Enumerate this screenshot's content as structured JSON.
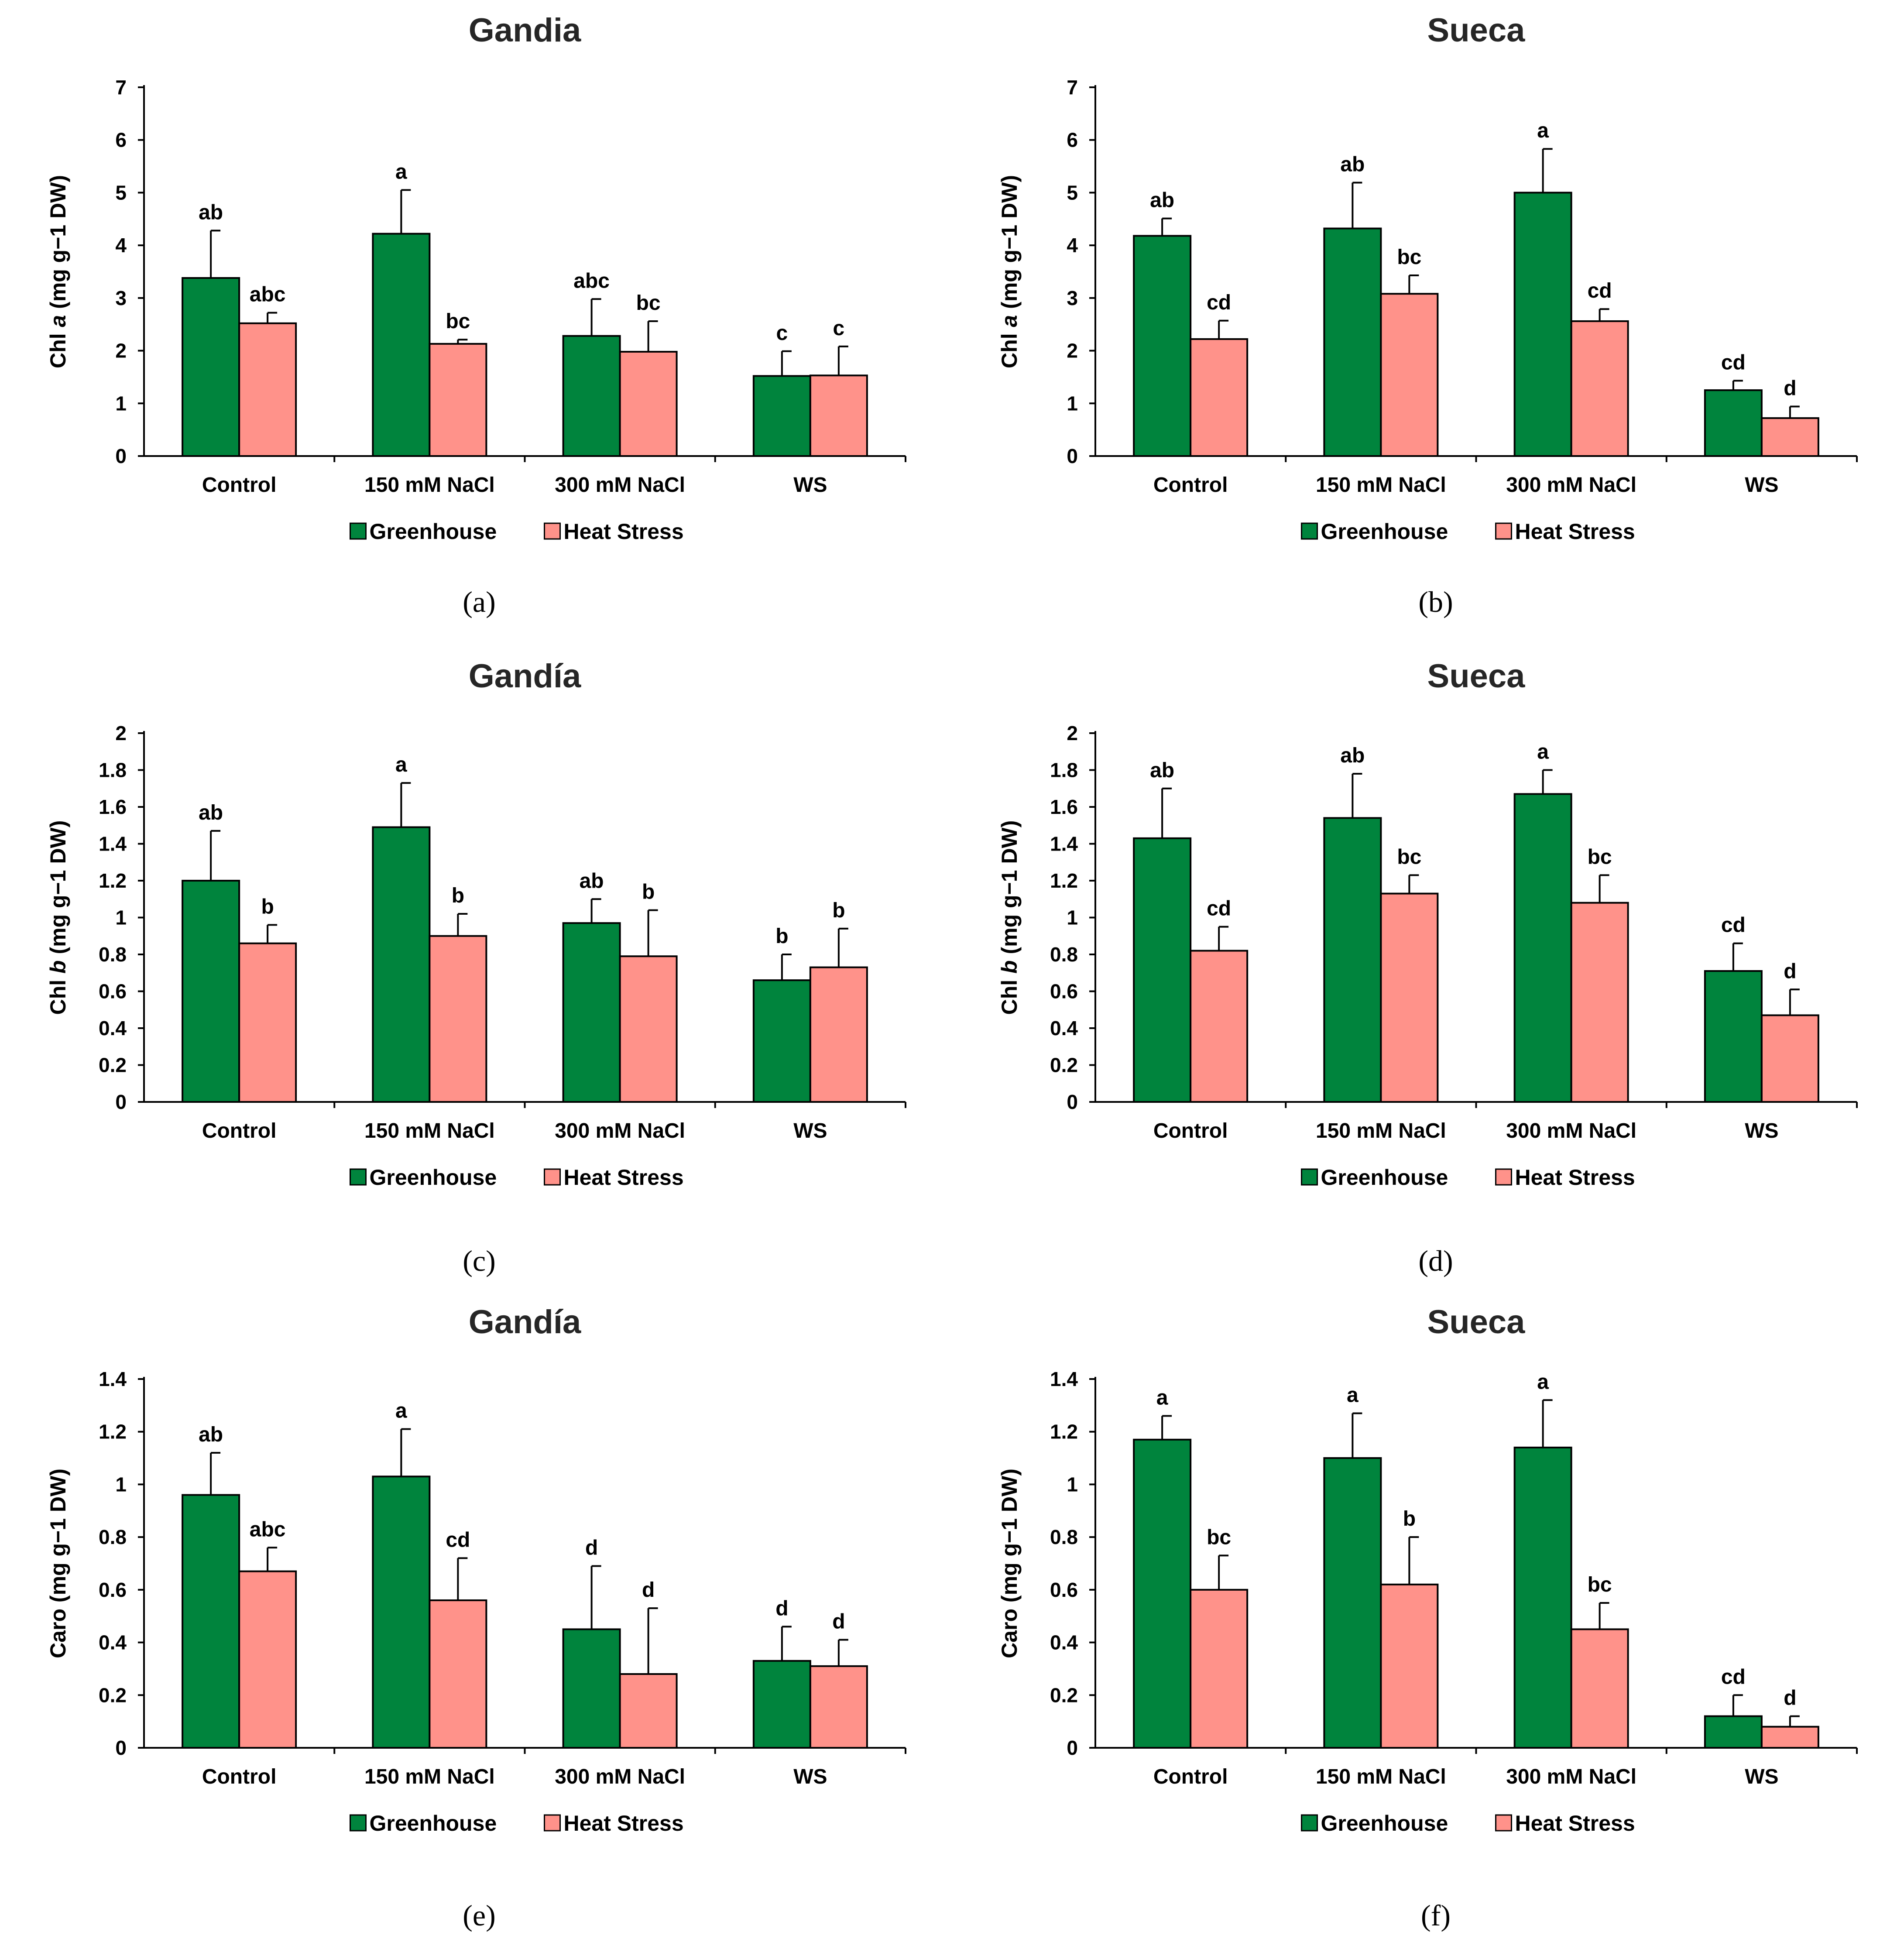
{
  "colors": {
    "greenhouse": "#00843d",
    "heat_stress": "#ff928a",
    "axis": "#000000",
    "error_bar": "#000000"
  },
  "chart_data": [
    {
      "panel": "a",
      "type": "bar",
      "title": "Gandia",
      "ylabel_prefix": "Chl ",
      "ylabel_italic": "a",
      "ylabel_suffix": " (mg g−1 DW)",
      "ylim": [
        0,
        7
      ],
      "yticks": [
        "0",
        "1",
        "2",
        "3",
        "4",
        "5",
        "6",
        "7"
      ],
      "ytick_values": [
        0,
        1,
        2,
        3,
        4,
        5,
        6,
        7
      ],
      "categories": [
        "Control",
        "150 mM NaCl",
        "300 mM NaCl",
        "WS"
      ],
      "series": [
        {
          "name": "Greenhouse",
          "values": [
            3.38,
            4.22,
            2.28,
            1.52
          ],
          "errors": [
            0.9,
            0.83,
            0.7,
            0.47
          ],
          "letters": [
            "ab",
            "a",
            "abc",
            "c"
          ]
        },
        {
          "name": "Heat Stress",
          "values": [
            2.52,
            2.13,
            1.98,
            1.53
          ],
          "errors": [
            0.2,
            0.08,
            0.58,
            0.55
          ],
          "letters": [
            "abc",
            "bc",
            "bc",
            "c"
          ]
        }
      ]
    },
    {
      "panel": "b",
      "type": "bar",
      "title": "Sueca",
      "ylabel_prefix": "Chl ",
      "ylabel_italic": "a",
      "ylabel_suffix": " (mg g−1 DW)",
      "ylim": [
        0,
        7
      ],
      "yticks": [
        "0",
        "1",
        "2",
        "3",
        "4",
        "5",
        "6",
        "7"
      ],
      "ytick_values": [
        0,
        1,
        2,
        3,
        4,
        5,
        6,
        7
      ],
      "categories": [
        "Control",
        "150 mM NaCl",
        "300 mM NaCl",
        "WS"
      ],
      "series": [
        {
          "name": "Greenhouse",
          "values": [
            4.18,
            4.32,
            5.0,
            1.25
          ],
          "errors": [
            0.33,
            0.87,
            0.83,
            0.18
          ],
          "letters": [
            "ab",
            "ab",
            "a",
            "cd"
          ]
        },
        {
          "name": "Heat Stress",
          "values": [
            2.22,
            3.08,
            2.56,
            0.72
          ],
          "errors": [
            0.35,
            0.35,
            0.23,
            0.22
          ],
          "letters": [
            "cd",
            "bc",
            "cd",
            "d"
          ]
        }
      ]
    },
    {
      "panel": "c",
      "type": "bar",
      "title": "Gandía",
      "ylabel_prefix": "Chl ",
      "ylabel_italic": "b",
      "ylabel_suffix": " (mg g−1 DW)",
      "ylim": [
        0,
        2
      ],
      "yticks": [
        "0",
        "0.2",
        "0.4",
        "0.6",
        "0.8",
        "1",
        "1.2",
        "1.4",
        "1.6",
        "1.8",
        "2"
      ],
      "ytick_values": [
        0,
        0.2,
        0.4,
        0.6,
        0.8,
        1,
        1.2,
        1.4,
        1.6,
        1.8,
        2
      ],
      "categories": [
        "Control",
        "150 mM NaCl",
        "300 mM NaCl",
        "WS"
      ],
      "series": [
        {
          "name": "Greenhouse",
          "values": [
            1.2,
            1.49,
            0.97,
            0.66
          ],
          "errors": [
            0.27,
            0.24,
            0.13,
            0.14
          ],
          "letters": [
            "ab",
            "a",
            "ab",
            "b"
          ]
        },
        {
          "name": "Heat Stress",
          "values": [
            0.86,
            0.9,
            0.79,
            0.73
          ],
          "errors": [
            0.1,
            0.12,
            0.25,
            0.21
          ],
          "letters": [
            "b",
            "b",
            "b",
            "b"
          ]
        }
      ]
    },
    {
      "panel": "d",
      "type": "bar",
      "title": "Sueca",
      "ylabel_prefix": "Chl ",
      "ylabel_italic": "b",
      "ylabel_suffix": " (mg g−1 DW)",
      "ylim": [
        0,
        2
      ],
      "yticks": [
        "0",
        "0.2",
        "0.4",
        "0.6",
        "0.8",
        "1",
        "1.2",
        "1.4",
        "1.6",
        "1.8",
        "2"
      ],
      "ytick_values": [
        0,
        0.2,
        0.4,
        0.6,
        0.8,
        1,
        1.2,
        1.4,
        1.6,
        1.8,
        2
      ],
      "categories": [
        "Control",
        "150 mM NaCl",
        "300 mM NaCl",
        "WS"
      ],
      "series": [
        {
          "name": "Greenhouse",
          "values": [
            1.43,
            1.54,
            1.67,
            0.71
          ],
          "errors": [
            0.27,
            0.24,
            0.13,
            0.15
          ],
          "letters": [
            "ab",
            "ab",
            "a",
            "cd"
          ]
        },
        {
          "name": "Heat Stress",
          "values": [
            0.82,
            1.13,
            1.08,
            0.47
          ],
          "errors": [
            0.13,
            0.1,
            0.15,
            0.14
          ],
          "letters": [
            "cd",
            "bc",
            "bc",
            "d"
          ]
        }
      ]
    },
    {
      "panel": "e",
      "type": "bar",
      "title": "Gandía",
      "ylabel_prefix": "Caro (mg g−1 DW)",
      "ylabel_italic": "",
      "ylabel_suffix": "",
      "ylim": [
        0,
        1.4
      ],
      "yticks": [
        "0",
        "0.2",
        "0.4",
        "0.6",
        "0.8",
        "1",
        "1.2",
        "1.4"
      ],
      "ytick_values": [
        0,
        0.2,
        0.4,
        0.6,
        0.8,
        1,
        1.2,
        1.4
      ],
      "categories": [
        "Control",
        "150 mM NaCl",
        "300 mM NaCl",
        "WS"
      ],
      "series": [
        {
          "name": "Greenhouse",
          "values": [
            0.96,
            1.03,
            0.45,
            0.33
          ],
          "errors": [
            0.16,
            0.18,
            0.24,
            0.13
          ],
          "letters": [
            "ab",
            "a",
            "d",
            "d"
          ]
        },
        {
          "name": "Heat Stress",
          "values": [
            0.67,
            0.56,
            0.28,
            0.31
          ],
          "errors": [
            0.09,
            0.16,
            0.25,
            0.1
          ],
          "letters": [
            "abc",
            "cd",
            "d",
            "d"
          ]
        }
      ]
    },
    {
      "panel": "f",
      "type": "bar",
      "title": "Sueca",
      "ylabel_prefix": "Caro (mg g−1 DW)",
      "ylabel_italic": "",
      "ylabel_suffix": "",
      "ylim": [
        0,
        1.4
      ],
      "yticks": [
        "0",
        "0.2",
        "0.4",
        "0.6",
        "0.8",
        "1",
        "1.2",
        "1.4"
      ],
      "ytick_values": [
        0,
        0.2,
        0.4,
        0.6,
        0.8,
        1,
        1.2,
        1.4
      ],
      "categories": [
        "Control",
        "150 mM NaCl",
        "300 mM NaCl",
        "WS"
      ],
      "series": [
        {
          "name": "Greenhouse",
          "values": [
            1.17,
            1.1,
            1.14,
            0.12
          ],
          "errors": [
            0.09,
            0.17,
            0.18,
            0.08
          ],
          "letters": [
            "a",
            "a",
            "a",
            "cd"
          ]
        },
        {
          "name": "Heat Stress",
          "values": [
            0.6,
            0.62,
            0.45,
            0.08
          ],
          "errors": [
            0.13,
            0.18,
            0.1,
            0.04
          ],
          "letters": [
            "bc",
            "b",
            "bc",
            "d"
          ]
        }
      ]
    }
  ],
  "captions": [
    "(a)",
    "(b)",
    "(c)",
    "(d)",
    "(e)",
    "(f)"
  ]
}
